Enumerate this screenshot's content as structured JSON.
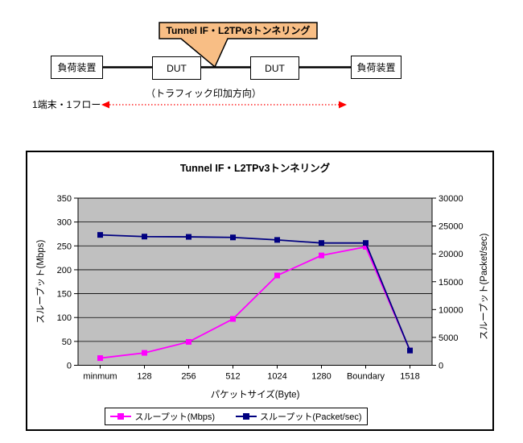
{
  "diagram": {
    "callout": {
      "label": "Tunnel IF・L2TPv3トンネリング",
      "fill": "#F8BE85"
    },
    "nodes": [
      {
        "label": "負荷装置"
      },
      {
        "label": "DUT"
      },
      {
        "label": "DUT"
      },
      {
        "label": "負荷装置"
      }
    ],
    "traffic_direction_label": "（トラフィック印加方向）",
    "flow_label": "1端末・1フロー",
    "arrow_color": "#FF0000"
  },
  "chart_data": {
    "type": "line",
    "title": "Tunnel IF・L2TPv3トンネリング",
    "categories": [
      "minmum",
      "128",
      "256",
      "512",
      "1024",
      "1280",
      "Boundary",
      "1518"
    ],
    "xlabel": "パケットサイズ(Byte)",
    "y_left": {
      "label": "スループット(Mbps)",
      "min": 0,
      "max": 350,
      "ticks": [
        0,
        50,
        100,
        150,
        200,
        250,
        300,
        350
      ]
    },
    "y_right": {
      "label": "スループット(Packet/sec)",
      "min": 0,
      "max": 30000,
      "ticks": [
        0,
        5000,
        10000,
        15000,
        20000,
        25000,
        30000
      ]
    },
    "plot_bg": "#C0C0C0",
    "grid": true,
    "legend_position": "bottom",
    "series": [
      {
        "name": "スループット(Mbps)",
        "axis": "left",
        "color": "#FF00FF",
        "marker": "square",
        "values": [
          15,
          26,
          49,
          97,
          188,
          230,
          248,
          31
        ]
      },
      {
        "name": "スループット(Packet/sec)",
        "axis": "right",
        "color": "#000080",
        "marker": "square",
        "values": [
          23400,
          23100,
          23050,
          22950,
          22500,
          21950,
          21950,
          2650
        ]
      }
    ]
  }
}
